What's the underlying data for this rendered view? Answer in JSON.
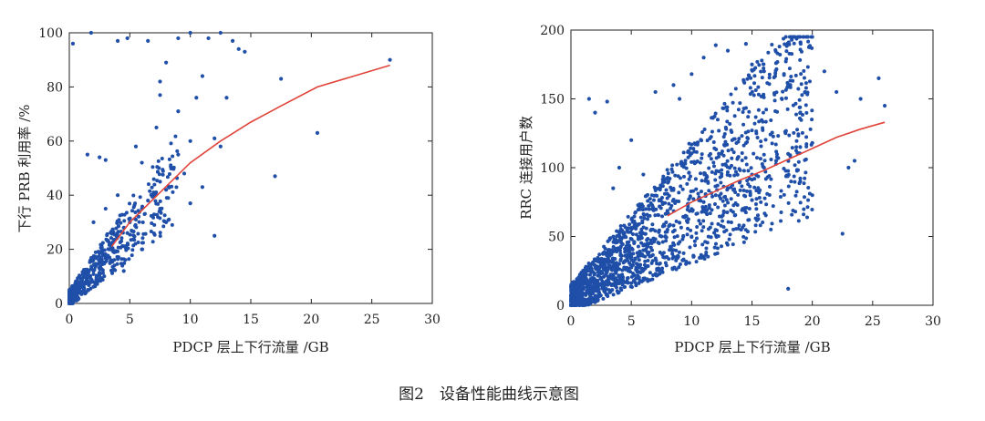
{
  "caption": "图2　设备性能曲线示意图",
  "chart_data": [
    {
      "type": "scatter",
      "xlabel": "PDCP 层上下行流量 /GB",
      "ylabel": "下行 PRB 利用率 /%",
      "xlim": [
        0,
        30
      ],
      "ylim": [
        0,
        100
      ],
      "xticks": [
        "0",
        "5",
        "10",
        "15",
        "20",
        "25",
        "30"
      ],
      "yticks": [
        "0",
        "20",
        "40",
        "60",
        "80",
        "100"
      ],
      "grid": false,
      "colors": {
        "points": "#1f4fa8",
        "curve": "#e0443a"
      },
      "series": [
        {
          "kind": "points",
          "description_points": [
            [
              0.2,
              3
            ],
            [
              0.5,
              5
            ],
            [
              0.8,
              4
            ],
            [
              1.0,
              8
            ],
            [
              1.2,
              6
            ],
            [
              1.5,
              10
            ],
            [
              1.8,
              9
            ],
            [
              2.0,
              12
            ],
            [
              2.2,
              14
            ],
            [
              2.5,
              15
            ],
            [
              2.8,
              18
            ],
            [
              3.0,
              17
            ],
            [
              3.3,
              20
            ],
            [
              3.5,
              22
            ],
            [
              3.8,
              19
            ],
            [
              4.0,
              25
            ],
            [
              4.3,
              23
            ],
            [
              4.5,
              28
            ],
            [
              4.8,
              26
            ],
            [
              5.0,
              30
            ],
            [
              5.5,
              31
            ],
            [
              6.0,
              35
            ],
            [
              6.5,
              38
            ],
            [
              7.0,
              40
            ],
            [
              7.5,
              45
            ],
            [
              8.0,
              42
            ],
            [
              8.5,
              50
            ],
            [
              9.0,
              55
            ],
            [
              9.5,
              48
            ],
            [
              10.0,
              60
            ],
            [
              3.0,
              53
            ],
            [
              2.5,
              54
            ],
            [
              1.5,
              55
            ],
            [
              4.0,
              40
            ],
            [
              5.5,
              58
            ],
            [
              6.0,
              52
            ],
            [
              7.2,
              65
            ],
            [
              7.5,
              82
            ],
            [
              8.0,
              89
            ],
            [
              9.0,
              71
            ],
            [
              10.5,
              76
            ],
            [
              11.0,
              84
            ],
            [
              12.0,
              61
            ],
            [
              12.5,
              58
            ],
            [
              13.0,
              76
            ],
            [
              14.0,
              94
            ],
            [
              17.0,
              47
            ],
            [
              17.5,
              83
            ],
            [
              20.5,
              63
            ],
            [
              26.5,
              90
            ],
            [
              0.3,
              96
            ],
            [
              1.8,
              100
            ],
            [
              4.0,
              97
            ],
            [
              4.8,
              98
            ],
            [
              6.5,
              97
            ],
            [
              7.5,
              77
            ],
            [
              9.0,
              98
            ],
            [
              10.0,
              100
            ],
            [
              11.5,
              98
            ],
            [
              12.5,
              100
            ],
            [
              13.5,
              97
            ],
            [
              14.5,
              93
            ],
            [
              2.0,
              30
            ],
            [
              3.0,
              35
            ],
            [
              4.5,
              12
            ],
            [
              6.0,
              20
            ],
            [
              8.0,
              30
            ],
            [
              10.0,
              37
            ],
            [
              11.0,
              43
            ],
            [
              12.0,
              25
            ]
          ]
        },
        {
          "kind": "curve",
          "x": [
            3.5,
            5,
            7.5,
            10,
            12.5,
            15,
            17.5,
            20.5,
            26.5
          ],
          "y": [
            21,
            30,
            41,
            52,
            60,
            67,
            73,
            80,
            88
          ]
        }
      ]
    },
    {
      "type": "scatter",
      "xlabel": "PDCP 层上下行流量 /GB",
      "ylabel": "RRC 连接用户数",
      "xlim": [
        0,
        30
      ],
      "ylim": [
        0,
        200
      ],
      "xticks": [
        "0",
        "5",
        "10",
        "15",
        "20",
        "25",
        "30"
      ],
      "yticks": [
        "0",
        "50",
        "100",
        "150",
        "200"
      ],
      "grid": false,
      "colors": {
        "points": "#1f4fa8",
        "curve": "#e0443a"
      },
      "series": [
        {
          "kind": "points",
          "description_points": [
            [
              0.5,
              5
            ],
            [
              1.0,
              8
            ],
            [
              1.5,
              12
            ],
            [
              2.0,
              18
            ],
            [
              2.5,
              20
            ],
            [
              3.0,
              25
            ],
            [
              3.5,
              28
            ],
            [
              4.0,
              30
            ],
            [
              4.5,
              32
            ],
            [
              5.0,
              35
            ],
            [
              5.5,
              38
            ],
            [
              6.0,
              40
            ],
            [
              6.5,
              45
            ],
            [
              7.0,
              48
            ],
            [
              7.5,
              50
            ],
            [
              8.0,
              55
            ],
            [
              8.5,
              58
            ],
            [
              9.0,
              60
            ],
            [
              9.5,
              65
            ],
            [
              10.0,
              70
            ],
            [
              11.0,
              75
            ],
            [
              12.0,
              80
            ],
            [
              13.0,
              85
            ],
            [
              14.0,
              90
            ],
            [
              15.0,
              95
            ],
            [
              16.0,
              100
            ],
            [
              17.0,
              105
            ],
            [
              18.0,
              110
            ],
            [
              19.0,
              115
            ],
            [
              20.0,
              118
            ],
            [
              1.5,
              150
            ],
            [
              2.0,
              140
            ],
            [
              3.0,
              148
            ],
            [
              7.0,
              155
            ],
            [
              8.5,
              160
            ],
            [
              9.0,
              150
            ],
            [
              10.0,
              168
            ],
            [
              11.0,
              180
            ],
            [
              12.0,
              189
            ],
            [
              13.0,
              185
            ],
            [
              14.5,
              190
            ],
            [
              15.0,
              175
            ],
            [
              16.0,
              170
            ],
            [
              17.0,
              176
            ],
            [
              18.0,
              160
            ],
            [
              21.0,
              170
            ],
            [
              22.0,
              155
            ],
            [
              23.0,
              100
            ],
            [
              24.0,
              150
            ],
            [
              25.5,
              165
            ],
            [
              26.0,
              145
            ],
            [
              22.5,
              52
            ],
            [
              18.0,
              12
            ],
            [
              19.0,
              90
            ],
            [
              20.0,
              80
            ],
            [
              23.5,
              105
            ],
            [
              5.0,
              120
            ],
            [
              4.0,
              100
            ],
            [
              6.0,
              95
            ],
            [
              3.5,
              85
            ]
          ]
        },
        {
          "kind": "curve",
          "x": [
            8,
            10,
            12,
            14,
            16,
            18,
            20,
            22,
            24,
            26
          ],
          "y": [
            65,
            75,
            83,
            91,
            98,
            106,
            114,
            122,
            128,
            133
          ]
        }
      ]
    }
  ]
}
